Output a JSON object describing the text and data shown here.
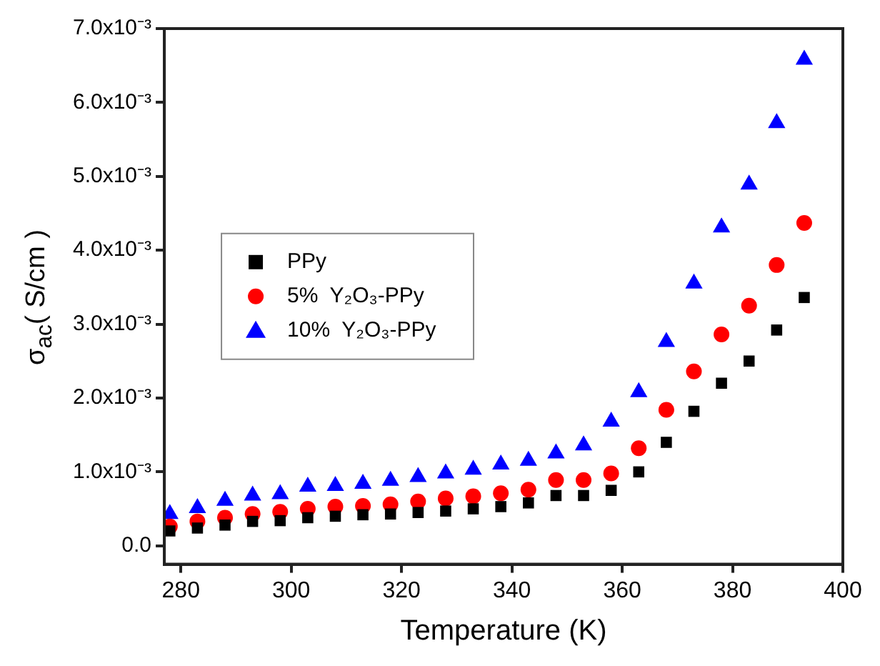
{
  "chart_data": {
    "type": "scatter",
    "xlabel": "Temperature (K)",
    "ylabel": "σ$_{ac}$( S/cm )",
    "x": [
      278,
      283,
      288,
      293,
      298,
      303,
      308,
      313,
      318,
      323,
      328,
      333,
      338,
      343,
      348,
      353,
      358,
      363,
      368,
      373,
      378,
      383,
      388,
      393
    ],
    "series": [
      {
        "name": "PPy",
        "color": "#000000",
        "marker": "square",
        "values": [
          0.0002,
          0.00024,
          0.00028,
          0.00033,
          0.00034,
          0.00038,
          0.0004,
          0.00042,
          0.00043,
          0.00045,
          0.00047,
          0.0005,
          0.00053,
          0.00058,
          0.00068,
          0.00068,
          0.00075,
          0.001,
          0.0014,
          0.00182,
          0.0022,
          0.0025,
          0.00292,
          0.00336
        ]
      },
      {
        "name": "5%  Y₂O₃-PPy",
        "color": "#ff0000",
        "marker": "circle",
        "values": [
          0.00026,
          0.00033,
          0.00038,
          0.00043,
          0.00046,
          0.0005,
          0.00053,
          0.00054,
          0.00056,
          0.0006,
          0.00064,
          0.00067,
          0.00071,
          0.00076,
          0.00089,
          0.00089,
          0.00098,
          0.00132,
          0.00184,
          0.00236,
          0.00286,
          0.00325,
          0.0038,
          0.00437
        ]
      },
      {
        "name": "10%  Y₂O₃-PPy",
        "color": "#0000ff",
        "marker": "triangle",
        "values": [
          0.00043,
          0.00051,
          0.00061,
          0.00068,
          0.0007,
          0.0008,
          0.00081,
          0.00084,
          0.00088,
          0.00093,
          0.00098,
          0.00103,
          0.0011,
          0.00115,
          0.00125,
          0.00136,
          0.00168,
          0.00208,
          0.00276,
          0.00355,
          0.00431,
          0.00489,
          0.00572,
          0.00658
        ]
      }
    ],
    "xlim": [
      277,
      400
    ],
    "xticks": [
      280,
      300,
      320,
      340,
      360,
      380,
      400
    ],
    "ylim": [
      -0.00025,
      0.007
    ],
    "yticks": [
      {
        "value": 0,
        "label": "0.0"
      },
      {
        "value": 0.001,
        "label": "1.0x10⁻³"
      },
      {
        "value": 0.002,
        "label": "2.0x10⁻³"
      },
      {
        "value": 0.003,
        "label": "3.0x10⁻³"
      },
      {
        "value": 0.004,
        "label": "4.0x10⁻³"
      },
      {
        "value": 0.005,
        "label": "5.0x10⁻³"
      },
      {
        "value": 0.006,
        "label": "6.0x10⁻³"
      },
      {
        "value": 0.007,
        "label": "7.0x10⁻³"
      }
    ],
    "grid": false,
    "legend": "left"
  }
}
